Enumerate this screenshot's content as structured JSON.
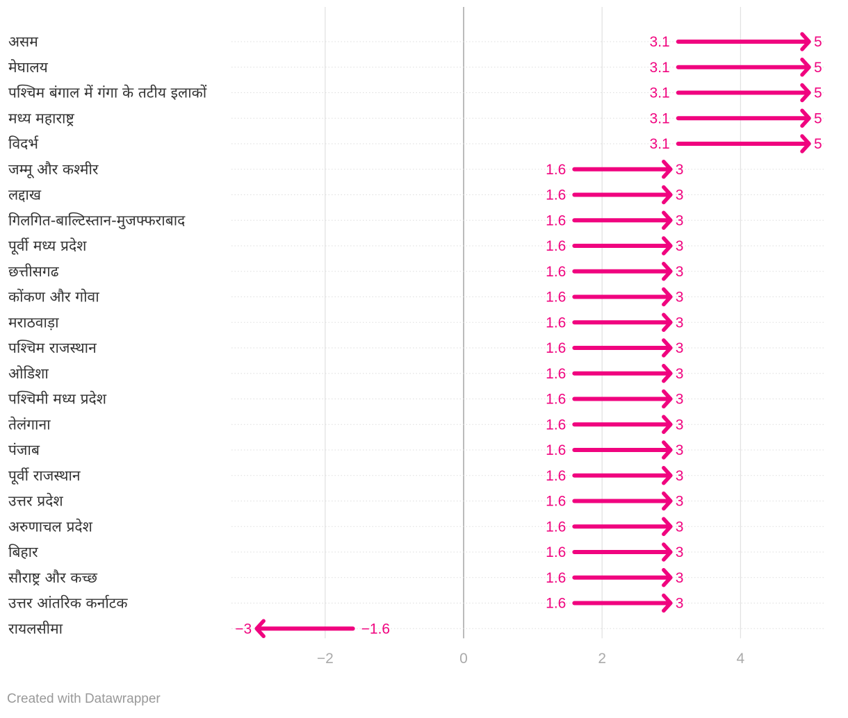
{
  "chart_data": {
    "type": "arrow-plot",
    "title": "",
    "xlabel": "",
    "ylabel": "",
    "xlim": [
      -3.4,
      5.2
    ],
    "x_ticks": [
      -2,
      0,
      2,
      4
    ],
    "x_tick_labels": [
      "−2",
      "0",
      "2",
      "4"
    ],
    "grid": true,
    "colors": {
      "arrow": "#f0047f",
      "grid": "#e2e2e2",
      "zero_line": "#bbbbbb",
      "row_line": "#dddddd",
      "tick_text": "#aaaaaa"
    },
    "rows": [
      {
        "label": "असम",
        "start": 3.1,
        "end": 5,
        "start_label": "3.1",
        "end_label": "5"
      },
      {
        "label": "मेघालय",
        "start": 3.1,
        "end": 5,
        "start_label": "3.1",
        "end_label": "5"
      },
      {
        "label": "पश्चिम बंगाल में गंगा के तटीय इलाकों",
        "start": 3.1,
        "end": 5,
        "start_label": "3.1",
        "end_label": "5"
      },
      {
        "label": "मध्य महाराष्ट्र",
        "start": 3.1,
        "end": 5,
        "start_label": "3.1",
        "end_label": "5"
      },
      {
        "label": "विदर्भ",
        "start": 3.1,
        "end": 5,
        "start_label": "3.1",
        "end_label": "5"
      },
      {
        "label": "जम्मू और कश्मीर",
        "start": 1.6,
        "end": 3,
        "start_label": "1.6",
        "end_label": "3"
      },
      {
        "label": "लद्दाख",
        "start": 1.6,
        "end": 3,
        "start_label": "1.6",
        "end_label": "3"
      },
      {
        "label": "गिलगित-बाल्टिस्तान-मुजफ्फराबाद",
        "start": 1.6,
        "end": 3,
        "start_label": "1.6",
        "end_label": "3"
      },
      {
        "label": "पूर्वी मध्य प्रदेश",
        "start": 1.6,
        "end": 3,
        "start_label": "1.6",
        "end_label": "3"
      },
      {
        "label": "छत्तीसगढ",
        "start": 1.6,
        "end": 3,
        "start_label": "1.6",
        "end_label": "3"
      },
      {
        "label": "कोंकण और गोवा",
        "start": 1.6,
        "end": 3,
        "start_label": "1.6",
        "end_label": "3"
      },
      {
        "label": "मराठवाड़ा",
        "start": 1.6,
        "end": 3,
        "start_label": "1.6",
        "end_label": "3"
      },
      {
        "label": "पश्चिम राजस्थान",
        "start": 1.6,
        "end": 3,
        "start_label": "1.6",
        "end_label": "3"
      },
      {
        "label": "ओडिशा",
        "start": 1.6,
        "end": 3,
        "start_label": "1.6",
        "end_label": "3"
      },
      {
        "label": "पश्चिमी मध्य प्रदेश",
        "start": 1.6,
        "end": 3,
        "start_label": "1.6",
        "end_label": "3"
      },
      {
        "label": "तेलंगाना",
        "start": 1.6,
        "end": 3,
        "start_label": "1.6",
        "end_label": "3"
      },
      {
        "label": "पंजाब",
        "start": 1.6,
        "end": 3,
        "start_label": "1.6",
        "end_label": "3"
      },
      {
        "label": "पूर्वी राजस्थान",
        "start": 1.6,
        "end": 3,
        "start_label": "1.6",
        "end_label": "3"
      },
      {
        "label": "उत्तर प्रदेश",
        "start": 1.6,
        "end": 3,
        "start_label": "1.6",
        "end_label": "3"
      },
      {
        "label": "अरुणाचल प्रदेश",
        "start": 1.6,
        "end": 3,
        "start_label": "1.6",
        "end_label": "3"
      },
      {
        "label": "बिहार",
        "start": 1.6,
        "end": 3,
        "start_label": "1.6",
        "end_label": "3"
      },
      {
        "label": "सौराष्ट्र और कच्छ",
        "start": 1.6,
        "end": 3,
        "start_label": "1.6",
        "end_label": "3"
      },
      {
        "label": "उत्तर आंतरिक कर्नाटक",
        "start": 1.6,
        "end": 3,
        "start_label": "1.6",
        "end_label": "3"
      },
      {
        "label": "रायलसीमा",
        "start": -1.6,
        "end": -3,
        "start_label": "−1.6",
        "end_label": "−3"
      }
    ]
  },
  "footer": {
    "credit": "Created with Datawrapper"
  }
}
